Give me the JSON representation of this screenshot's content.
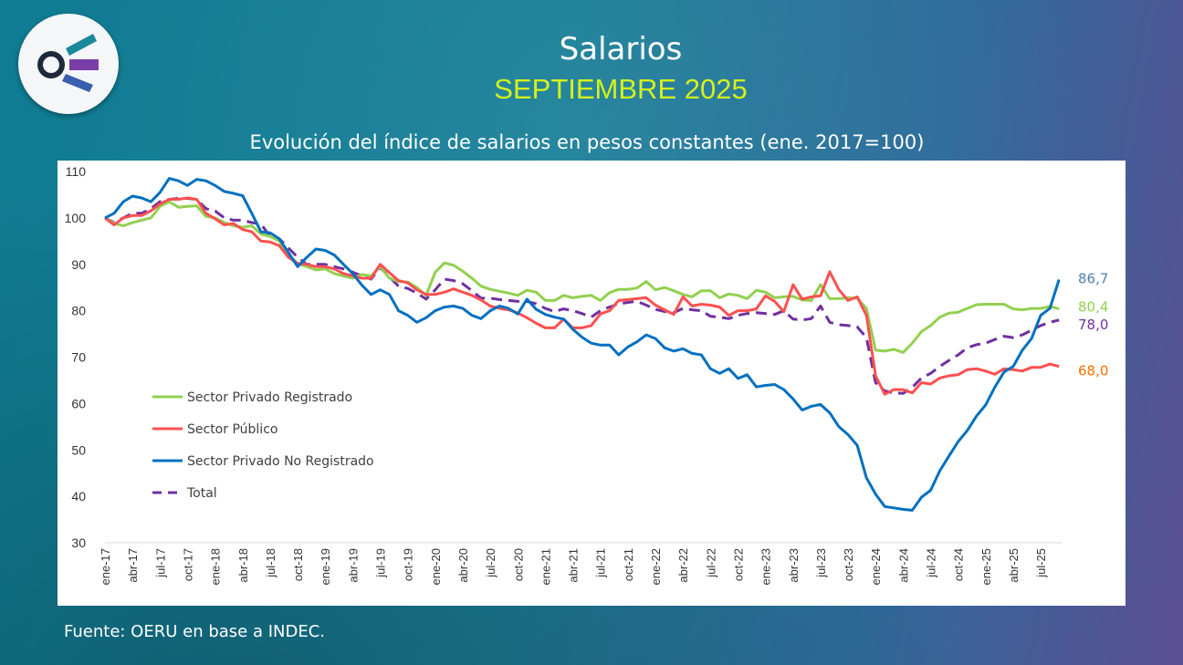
{
  "header": {
    "title": "Salarios",
    "period": "SEPTIEMBRE 2025"
  },
  "footer": {
    "source": "Fuente: OERU en base a INDEC."
  },
  "colors": {
    "private_registered": "#92d050",
    "public": "#ff5050",
    "private_unregistered": "#0070c0",
    "total": "#7030a0",
    "month_accent": "#d4f21c"
  },
  "chart_data": {
    "type": "line",
    "title": "Evolución del índice de salarios en pesos constantes (ene. 2017=100)",
    "frequency": "monthly",
    "first_month": "ene-17",
    "last_month": "sep-25",
    "ylim": [
      30,
      110
    ],
    "yticks": [
      "110",
      "100",
      "90",
      "80",
      "70",
      "60",
      "50",
      "40",
      "30"
    ],
    "xtick_labels": [
      "ene-17",
      "abr-17",
      "jul-17",
      "oct-17",
      "ene-18",
      "abr-18",
      "jul-18",
      "oct-18",
      "ene-19",
      "abr-19",
      "jul-19",
      "oct-19",
      "ene-20",
      "abr-20",
      "jul-20",
      "oct-20",
      "ene-21",
      "abr-21",
      "jul-21",
      "oct-21",
      "ene-22",
      "abr-22",
      "jul-22",
      "oct-22",
      "ene-23",
      "abr-23",
      "jul-23",
      "oct-23",
      "ene-24",
      "abr-24",
      "jul-24",
      "oct-24",
      "ene-25",
      "abr-25",
      "jul-25"
    ],
    "grid": false,
    "legend_position": "left",
    "series": [
      {
        "name": "Sector Privado Registrado",
        "color": "#92d050",
        "dash": false,
        "end_label": "80,4",
        "end_label_color": "#92d050",
        "values": [
          100,
          98.8,
          98.3,
          99,
          99.5,
          100,
          102.5,
          103.5,
          102.3,
          102.5,
          102.6,
          100.3,
          100,
          99,
          98.3,
          98,
          98.3,
          96.5,
          96,
          95,
          92,
          90.2,
          89.5,
          88.8,
          89,
          88,
          87.5,
          87,
          87.8,
          87.5,
          89.5,
          87,
          86.3,
          86.2,
          85,
          83.3,
          88.3,
          90.3,
          89.8,
          88.5,
          87,
          85.3,
          84.6,
          84.2,
          83.8,
          83.3,
          84.4,
          84,
          82.2,
          82.2,
          83.3,
          82.8,
          83.1,
          83.3,
          82.2,
          83.9,
          84.6,
          84.6,
          84.9,
          86.3,
          84.5,
          85,
          84.3,
          83.5,
          83,
          84.3,
          84.3,
          82.8,
          83.6,
          83.3,
          82.6,
          84.4,
          84,
          82.8,
          83,
          83.1,
          82.3,
          82.2,
          85.6,
          82.6,
          82.6,
          82.8,
          82.7,
          80.5,
          71.5,
          71.3,
          71.7,
          71,
          73,
          75.5,
          76.8,
          78.6,
          79.5,
          79.7,
          80.5,
          81.3,
          81.4,
          81.4,
          81.4,
          80.4,
          80.2,
          80.5,
          80.5,
          80.9,
          80.4
        ]
      },
      {
        "name": "Sector Público",
        "color": "#ff5050",
        "dash": false,
        "end_label": "68,0",
        "end_label_color": "#ff6d00",
        "values": [
          100,
          98.5,
          100,
          100.5,
          100.5,
          101.5,
          103,
          104,
          104,
          104.3,
          104,
          101,
          99.8,
          98.5,
          98.8,
          97.5,
          97,
          95,
          94.8,
          94,
          91.5,
          90.2,
          90,
          89.5,
          89.5,
          89,
          88,
          87.5,
          87,
          87,
          90,
          88.2,
          86.5,
          86,
          84.5,
          83.5,
          83.5,
          84,
          84.7,
          84,
          83.3,
          82.3,
          81,
          80.5,
          80.2,
          79.5,
          78.5,
          77.3,
          76.3,
          76.3,
          78.2,
          76.3,
          76.3,
          76.8,
          79.3,
          80,
          82.2,
          82.4,
          82.6,
          82.8,
          81.2,
          80.2,
          79.2,
          83,
          81,
          81.4,
          81.2,
          80.8,
          79,
          80,
          80,
          80.4,
          83.2,
          82,
          79.8,
          85.6,
          82.5,
          83,
          83.2,
          88.4,
          84.5,
          82.2,
          83,
          79,
          66,
          62,
          63,
          63,
          62.3,
          64.5,
          64.2,
          65.5,
          66,
          66.2,
          67.3,
          67.5,
          67,
          66.3,
          67.5,
          67.3,
          67,
          67.8,
          67.8,
          68.5,
          68
        ]
      },
      {
        "name": "Sector Privado No Registrado",
        "color": "#0070c0",
        "dash": false,
        "end_label": "86,7",
        "end_label_color": "#4f81a8",
        "values": [
          100,
          101,
          103.5,
          104.7,
          104.3,
          103.5,
          105.5,
          108.5,
          108,
          107,
          108.3,
          108,
          107,
          105.7,
          105.3,
          104.8,
          101,
          97,
          96.8,
          95.5,
          92.5,
          89.5,
          91.5,
          93.3,
          93,
          92,
          90,
          88,
          85.5,
          83.5,
          84.5,
          83.5,
          80,
          79,
          77.5,
          78.5,
          80,
          80.8,
          81,
          80.5,
          79,
          78.3,
          80,
          81,
          80.5,
          79.3,
          82.5,
          80.3,
          79.2,
          78.6,
          78.2,
          76,
          74.3,
          73,
          72.6,
          72.6,
          70.5,
          72.2,
          73.3,
          74.8,
          74,
          72,
          71.3,
          71.8,
          70.8,
          70.5,
          67.5,
          66.5,
          67.5,
          65.4,
          66.2,
          63.6,
          63.9,
          64.1,
          63,
          61,
          58.6,
          59.4,
          59.8,
          58,
          55,
          53.3,
          51,
          44,
          40.5,
          37.8,
          37.5,
          37.2,
          37,
          39.8,
          41.3,
          45.5,
          48.7,
          51.8,
          54.2,
          57.3,
          59.7,
          63.5,
          66.8,
          68,
          71.5,
          74,
          79,
          80.5,
          86.7
        ]
      },
      {
        "name": "Total",
        "color": "#7030a0",
        "dash": true,
        "end_label": "78,0",
        "end_label_color": "#7030a0",
        "values": [
          100,
          99,
          100,
          101,
          101,
          102,
          103.5,
          104,
          104.2,
          104.2,
          104,
          102,
          101.5,
          100,
          99.5,
          99.5,
          99,
          98.7,
          96,
          95.5,
          93.5,
          91.5,
          90,
          90,
          90,
          89.5,
          89,
          88.3,
          87.5,
          86.8,
          89.3,
          87.3,
          85.3,
          84.8,
          83.8,
          82.5,
          84.5,
          86.8,
          86.5,
          85.8,
          84.3,
          82.7,
          82.7,
          82.4,
          82.2,
          82,
          82,
          81.5,
          80.5,
          79.8,
          80.4,
          80,
          79.4,
          78.6,
          80,
          80.8,
          81.5,
          81.8,
          82,
          81.2,
          80.3,
          79.8,
          79.6,
          80.5,
          80.2,
          80,
          78.8,
          78.6,
          78.3,
          79,
          79.4,
          79.6,
          79.4,
          79.2,
          80,
          78.2,
          78,
          78.3,
          81,
          77.5,
          77,
          76.8,
          76.5,
          74.2,
          64.5,
          62.7,
          62.3,
          62.2,
          63.5,
          65.5,
          66.5,
          68,
          69.3,
          70.5,
          72,
          72.7,
          73,
          73.8,
          74.5,
          74.2,
          74.8,
          75.8,
          76.8,
          77.5,
          78
        ]
      }
    ]
  }
}
